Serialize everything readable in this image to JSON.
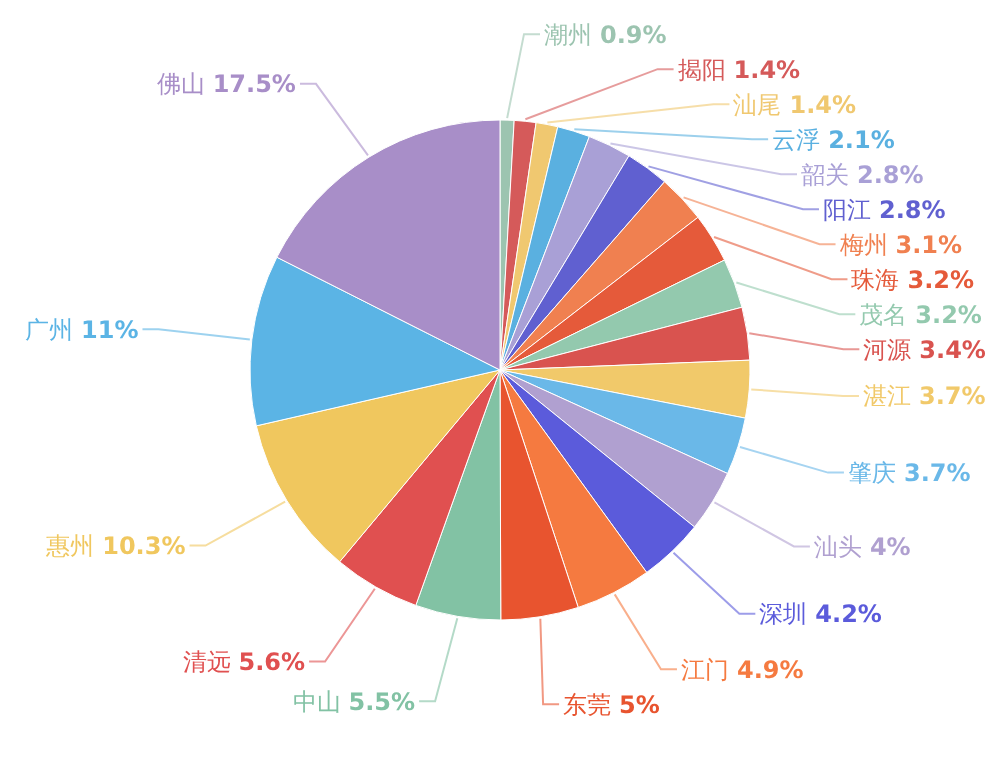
{
  "chart_data": {
    "type": "pie",
    "categories": [
      "潮州",
      "揭阳",
      "汕尾",
      "云浮",
      "韶关",
      "阳江",
      "梅州",
      "珠海",
      "茂名",
      "河源",
      "湛江",
      "肇庆",
      "汕头",
      "深圳",
      "江门",
      "东莞",
      "中山",
      "清远",
      "惠州",
      "广州",
      "佛山"
    ],
    "values": [
      0.9,
      1.4,
      1.4,
      2.1,
      2.8,
      2.8,
      3.1,
      3.2,
      3.2,
      3.4,
      3.7,
      3.7,
      4,
      4.2,
      4.9,
      5,
      5.5,
      5.6,
      10.3,
      11,
      17.5
    ],
    "colors": [
      "#9cc4b0",
      "#d55a5a",
      "#f0c870",
      "#5ab0e0",
      "#a9a0d6",
      "#6060d0",
      "#f08050",
      "#e55a3a",
      "#93c9ae",
      "#d9534f",
      "#f1c96a",
      "#6ab8e8",
      "#b0a0d0",
      "#5b5bdb",
      "#f57a40",
      "#e8542f",
      "#82c2a4",
      "#e05050",
      "#f0c75e",
      "#5bb4e5",
      "#a88ec8"
    ],
    "value_labels": [
      "0.9%",
      "1.4%",
      "1.4%",
      "2.1%",
      "2.8%",
      "2.8%",
      "3.1%",
      "3.2%",
      "3.2%",
      "3.4%",
      "3.7%",
      "3.7%",
      "4%",
      "4.2%",
      "4.9%",
      "5%",
      "5.5%",
      "5.6%",
      "10.3%",
      "11%",
      "17.5%"
    ]
  }
}
